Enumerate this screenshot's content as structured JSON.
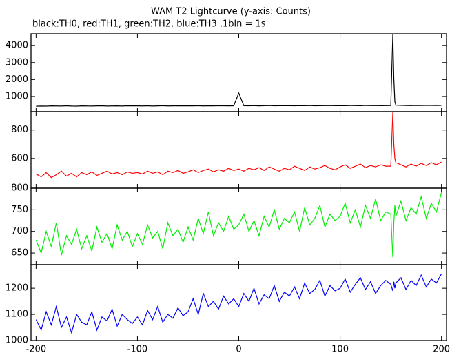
{
  "chart_data": [
    {
      "type": "line",
      "title": "WAM T2 Lightcurve (y-axis: Counts)",
      "subtitle": "black:TH0, red:TH1, green:TH2, blue:TH3 ,1bin = 1s",
      "x": [
        -200,
        -195,
        -190,
        -185,
        -180,
        -175,
        -170,
        -165,
        -160,
        -155,
        -150,
        -145,
        -140,
        -135,
        -130,
        -125,
        -120,
        -115,
        -110,
        -105,
        -100,
        -95,
        -90,
        -85,
        -80,
        -75,
        -70,
        -65,
        -60,
        -55,
        -50,
        -45,
        -40,
        -35,
        -30,
        -25,
        -20,
        -15,
        -10,
        -5,
        0,
        5,
        10,
        15,
        20,
        25,
        30,
        35,
        40,
        45,
        50,
        55,
        60,
        65,
        70,
        75,
        80,
        85,
        90,
        95,
        100,
        105,
        110,
        115,
        120,
        125,
        130,
        135,
        140,
        145,
        150,
        152,
        153,
        154,
        155,
        160,
        165,
        170,
        175,
        180,
        185,
        190,
        195,
        200
      ],
      "xlim": [
        -205,
        205
      ],
      "ylim": [
        100,
        4700
      ],
      "yticks": [
        1000,
        2000,
        3000,
        4000
      ],
      "series": [
        {
          "color": "#000000",
          "values": [
            420,
            430,
            425,
            440,
            435,
            430,
            445,
            430,
            425,
            440,
            435,
            430,
            440,
            445,
            430,
            435,
            440,
            430,
            445,
            440,
            440,
            435,
            445,
            430,
            440,
            450,
            435,
            440,
            445,
            440,
            445,
            440,
            450,
            435,
            445,
            440,
            450,
            445,
            440,
            445,
            1200,
            450,
            445,
            455,
            440,
            450,
            460,
            445,
            450,
            455,
            450,
            445,
            455,
            450,
            460,
            445,
            450,
            455,
            460,
            450,
            455,
            450,
            460,
            455,
            450,
            465,
            455,
            460,
            450,
            455,
            460,
            4680,
            2050,
            700,
            480,
            470,
            460,
            455,
            465,
            460,
            470,
            465,
            460,
            470
          ]
        }
      ]
    },
    {
      "type": "line",
      "x": [
        -200,
        -195,
        -190,
        -185,
        -180,
        -175,
        -170,
        -165,
        -160,
        -155,
        -150,
        -145,
        -140,
        -135,
        -130,
        -125,
        -120,
        -115,
        -110,
        -105,
        -100,
        -95,
        -90,
        -85,
        -80,
        -75,
        -70,
        -65,
        -60,
        -55,
        -50,
        -45,
        -40,
        -35,
        -30,
        -25,
        -20,
        -15,
        -10,
        -5,
        0,
        5,
        10,
        15,
        20,
        25,
        30,
        35,
        40,
        45,
        50,
        55,
        60,
        65,
        70,
        75,
        80,
        85,
        90,
        95,
        100,
        105,
        110,
        115,
        120,
        125,
        130,
        135,
        140,
        145,
        150,
        152,
        153,
        154,
        155,
        160,
        165,
        170,
        175,
        180,
        185,
        190,
        195,
        200
      ],
      "xlim": [
        -205,
        205
      ],
      "ylim": [
        390,
        930
      ],
      "yticks": [
        600,
        800
      ],
      "series": [
        {
          "color": "#ff0000",
          "values": [
            490,
            470,
            500,
            465,
            485,
            510,
            475,
            495,
            470,
            500,
            485,
            505,
            480,
            495,
            510,
            490,
            500,
            485,
            505,
            495,
            500,
            490,
            510,
            495,
            505,
            485,
            510,
            500,
            515,
            495,
            505,
            520,
            500,
            515,
            525,
            505,
            520,
            510,
            530,
            515,
            525,
            510,
            530,
            520,
            535,
            515,
            540,
            525,
            510,
            530,
            520,
            545,
            530,
            515,
            540,
            525,
            535,
            550,
            530,
            520,
            540,
            555,
            530,
            545,
            560,
            535,
            550,
            540,
            555,
            545,
            545,
            925,
            700,
            600,
            570,
            555,
            540,
            560,
            545,
            565,
            550,
            570,
            555,
            575
          ]
        }
      ]
    },
    {
      "type": "line",
      "x": [
        -200,
        -195,
        -190,
        -185,
        -180,
        -175,
        -170,
        -165,
        -160,
        -155,
        -150,
        -145,
        -140,
        -135,
        -130,
        -125,
        -120,
        -115,
        -110,
        -105,
        -100,
        -95,
        -90,
        -85,
        -80,
        -75,
        -70,
        -65,
        -60,
        -55,
        -50,
        -45,
        -40,
        -35,
        -30,
        -25,
        -20,
        -15,
        -10,
        -5,
        0,
        5,
        10,
        15,
        20,
        25,
        30,
        35,
        40,
        45,
        50,
        55,
        60,
        65,
        70,
        75,
        80,
        85,
        90,
        95,
        100,
        105,
        110,
        115,
        120,
        125,
        130,
        135,
        140,
        145,
        150,
        152,
        153,
        154,
        155,
        160,
        165,
        170,
        175,
        180,
        185,
        190,
        195,
        200
      ],
      "xlim": [
        -205,
        205
      ],
      "ylim": [
        623,
        800
      ],
      "yticks": [
        650,
        700,
        750,
        800
      ],
      "series": [
        {
          "color": "#00ee00",
          "values": [
            680,
            650,
            700,
            665,
            720,
            645,
            690,
            670,
            705,
            660,
            690,
            655,
            710,
            675,
            695,
            660,
            715,
            680,
            700,
            665,
            695,
            670,
            715,
            685,
            700,
            660,
            720,
            690,
            705,
            675,
            710,
            680,
            730,
            695,
            745,
            690,
            720,
            700,
            735,
            705,
            715,
            740,
            700,
            725,
            690,
            735,
            710,
            750,
            705,
            730,
            720,
            745,
            700,
            755,
            715,
            730,
            760,
            710,
            740,
            725,
            735,
            765,
            720,
            750,
            710,
            760,
            730,
            775,
            725,
            745,
            740,
            640,
            720,
            760,
            735,
            770,
            725,
            755,
            740,
            780,
            730,
            765,
            745,
            790
          ]
        }
      ]
    },
    {
      "type": "line",
      "x": [
        -200,
        -195,
        -190,
        -185,
        -180,
        -175,
        -170,
        -165,
        -160,
        -155,
        -150,
        -145,
        -140,
        -135,
        -130,
        -125,
        -120,
        -115,
        -110,
        -105,
        -100,
        -95,
        -90,
        -85,
        -80,
        -75,
        -70,
        -65,
        -60,
        -55,
        -50,
        -45,
        -40,
        -35,
        -30,
        -25,
        -20,
        -15,
        -10,
        -5,
        0,
        5,
        10,
        15,
        20,
        25,
        30,
        35,
        40,
        45,
        50,
        55,
        60,
        65,
        70,
        75,
        80,
        85,
        90,
        95,
        100,
        105,
        110,
        115,
        120,
        125,
        130,
        135,
        140,
        145,
        150,
        152,
        153,
        154,
        155,
        160,
        165,
        170,
        175,
        180,
        185,
        190,
        195,
        200
      ],
      "xlim": [
        -205,
        205
      ],
      "xticks": [
        -200,
        -100,
        0,
        100,
        200
      ],
      "ylim": [
        1000,
        1290
      ],
      "yticks": [
        1000,
        1100,
        1200
      ],
      "series": [
        {
          "color": "#0000ff",
          "values": [
            1080,
            1040,
            1110,
            1060,
            1130,
            1050,
            1090,
            1030,
            1100,
            1070,
            1060,
            1110,
            1040,
            1090,
            1075,
            1120,
            1055,
            1100,
            1080,
            1065,
            1090,
            1060,
            1115,
            1080,
            1130,
            1070,
            1100,
            1085,
            1125,
            1095,
            1110,
            1160,
            1100,
            1180,
            1130,
            1150,
            1120,
            1170,
            1140,
            1160,
            1130,
            1180,
            1150,
            1200,
            1140,
            1175,
            1160,
            1210,
            1150,
            1185,
            1170,
            1205,
            1160,
            1220,
            1180,
            1195,
            1230,
            1170,
            1210,
            1190,
            1200,
            1235,
            1185,
            1215,
            1240,
            1195,
            1225,
            1180,
            1210,
            1230,
            1215,
            1190,
            1225,
            1200,
            1220,
            1240,
            1195,
            1230,
            1210,
            1250,
            1205,
            1235,
            1220,
            1255
          ]
        }
      ]
    }
  ]
}
